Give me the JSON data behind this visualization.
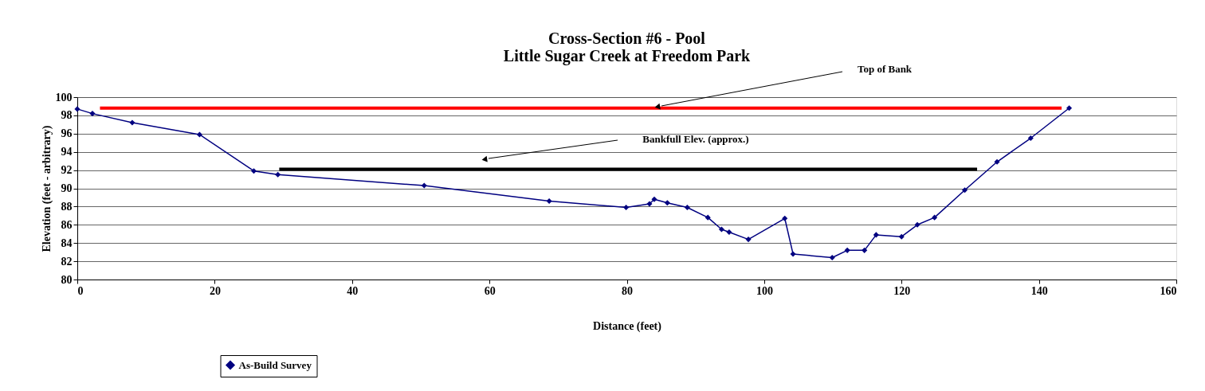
{
  "chart_data": {
    "type": "line",
    "title": [
      "Cross-Section #6 - Pool",
      "Little Sugar Creek at Freedom Park"
    ],
    "xlabel": "Distance (feet)",
    "ylabel": "Elevation (feet - arbitrary)",
    "xlim": [
      0,
      160
    ],
    "xticks": [
      0,
      20,
      40,
      60,
      80,
      100,
      120,
      140,
      160
    ],
    "ylim": [
      80,
      100
    ],
    "yticks": [
      80,
      82,
      84,
      86,
      88,
      90,
      92,
      94,
      96,
      98,
      100
    ],
    "grid": "y",
    "legend": "bottom",
    "marker": "diamond",
    "line_style": "solid",
    "annotations": [
      "Top of Bank",
      "Bankfull Elev. (approx.)"
    ],
    "series": [
      {
        "name": "As-Build Survey",
        "color": "#000080",
        "x": [
          0,
          2.2,
          8.0,
          17.8,
          25.7,
          29.2,
          50.5,
          68.7,
          79.9,
          83.3,
          84.0,
          85.9,
          88.8,
          91.8,
          93.8,
          94.9,
          97.7,
          103.0,
          104.2,
          109.9,
          112.1,
          114.6,
          116.3,
          120.0,
          122.3,
          124.8,
          129.2,
          133.9,
          138.8,
          144.4
        ],
        "values": [
          98.7,
          98.2,
          97.2,
          95.9,
          91.9,
          91.5,
          90.3,
          88.6,
          87.9,
          88.3,
          88.8,
          88.4,
          87.9,
          86.8,
          85.5,
          85.2,
          84.4,
          86.7,
          82.8,
          82.4,
          83.2,
          83.2,
          84.9,
          84.7,
          86.0,
          86.8,
          89.8,
          92.9,
          95.5,
          98.8
        ]
      },
      {
        "color": "#ff0000",
        "marker": "none",
        "x": [
          3.3,
          143.3
        ],
        "values": [
          98.8,
          98.8
        ]
      },
      {
        "color": "#000000",
        "marker": "none",
        "x": [
          29.4,
          131.0
        ],
        "values": [
          92.1,
          92.1
        ]
      }
    ]
  }
}
